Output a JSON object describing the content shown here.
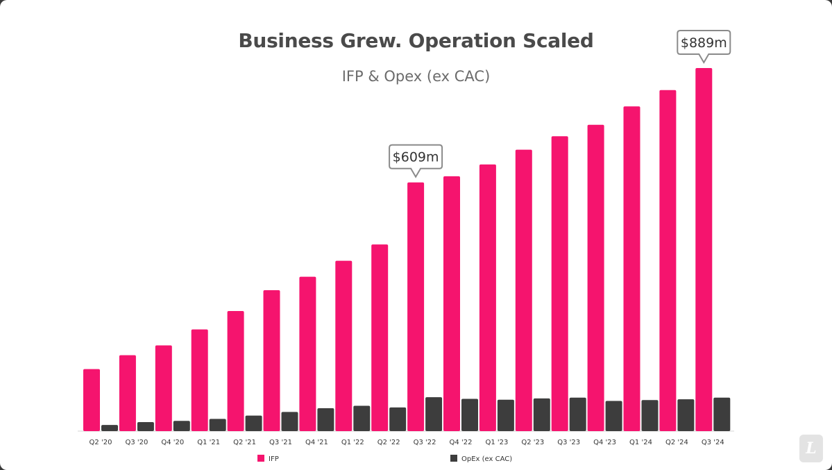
{
  "slide": {
    "title": "Business Grew. Operation Scaled",
    "subtitle": "IFP & Opex (ex CAC)",
    "logo_letter": "L"
  },
  "chart_data": {
    "type": "bar",
    "title": "Business Grew. Operation Scaled",
    "subtitle": "IFP & Opex (ex CAC)",
    "categories": [
      "Q2 '20",
      "Q3 '20",
      "Q4 '20",
      "Q1 '21",
      "Q2 '21",
      "Q3 '21",
      "Q4 '21",
      "Q1 '22",
      "Q2 '22",
      "Q3 '22",
      "Q4 '22",
      "Q1 '23",
      "Q2 '23",
      "Q3 '23",
      "Q4 '23",
      "Q1 '24",
      "Q2 '24",
      "Q3 '24"
    ],
    "series": [
      {
        "name": "IFP",
        "color": "#f5146e",
        "values": [
          152,
          186,
          210,
          249,
          294,
          345,
          378,
          417,
          457,
          609,
          624,
          653,
          689,
          722,
          750,
          795,
          835,
          889
        ]
      },
      {
        "name": "OpEx (ex CAC)",
        "color": "#3d3d3d",
        "values": [
          15,
          22,
          25,
          30,
          38,
          47,
          56,
          62,
          58,
          83,
          79,
          77,
          80,
          82,
          74,
          76,
          78,
          82
        ]
      }
    ],
    "annotations": [
      {
        "category": "Q3 '22",
        "label": "$609m"
      },
      {
        "category": "Q3 '24",
        "label": "$889m"
      }
    ],
    "ylim": [
      0,
      900
    ],
    "grid": false,
    "legend": "bottom"
  }
}
